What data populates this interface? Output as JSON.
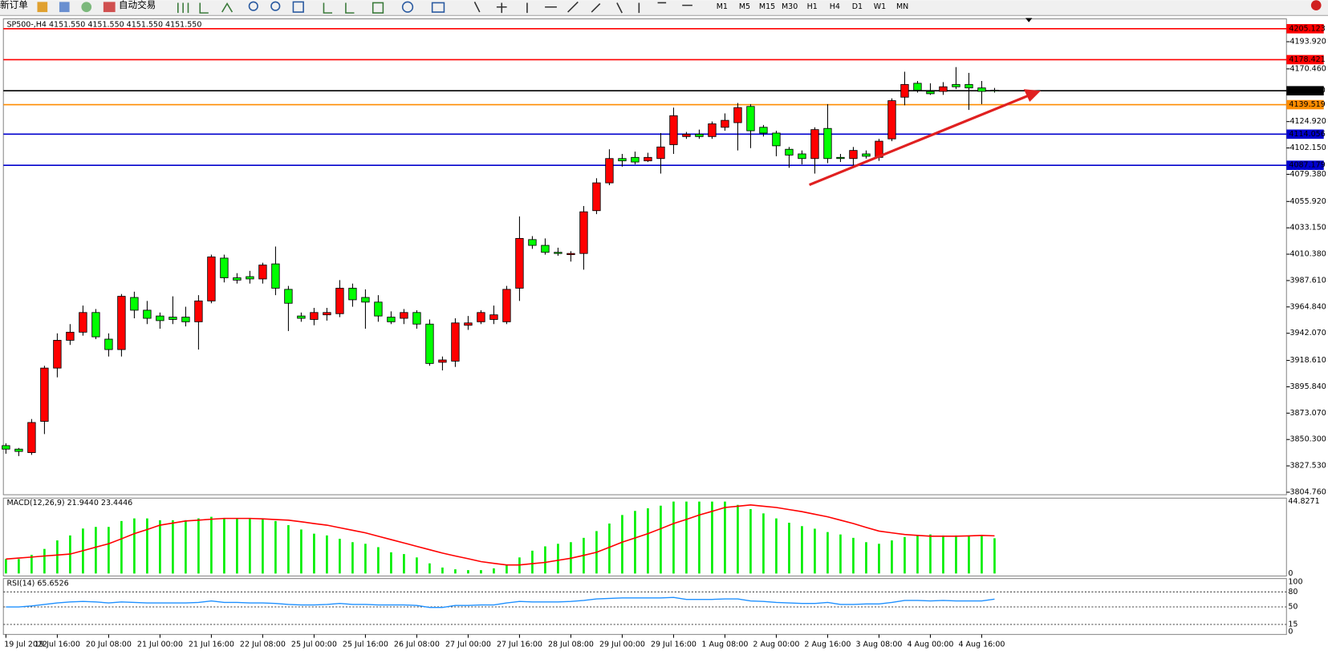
{
  "toolbar": {
    "new_order": "新订单",
    "auto_trading": "自动交易",
    "timeframes": [
      "M1",
      "M5",
      "M15",
      "M30",
      "H1",
      "H4",
      "D1",
      "W1",
      "MN"
    ]
  },
  "chart_data": [
    {
      "type": "candlestick",
      "title": "SP500-,H4  4151.550 4151.550 4151.550 4151.550",
      "bull_color": "#ff0000",
      "bear_color": "#00ff00",
      "categories": [
        "19 Jul 2022",
        null,
        null,
        null,
        "19 Jul 16:00",
        null,
        null,
        null,
        "20 Jul 08:00",
        null,
        null,
        null,
        "21 Jul 00:00",
        null,
        null,
        null,
        "21 Jul 16:00",
        null,
        null,
        null,
        "22 Jul 08:00",
        null,
        null,
        null,
        "25 Jul 00:00",
        null,
        null,
        null,
        "25 Jul 16:00",
        null,
        null,
        null,
        "26 Jul 08:00",
        null,
        null,
        null,
        "27 Jul 00:00",
        null,
        null,
        null,
        "27 Jul 16:00",
        null,
        null,
        null,
        "28 Jul 08:00",
        null,
        null,
        null,
        "29 Jul 00:00",
        null,
        null,
        null,
        "29 Jul 16:00",
        null,
        null,
        null,
        "1 Aug 08:00",
        null,
        null,
        null,
        "2 Aug 00:00",
        null,
        null,
        null,
        "2 Aug 16:00",
        null,
        null,
        null,
        "3 Aug 08:00",
        null,
        null,
        null,
        "4 Aug 00:00",
        null,
        null,
        null,
        "4 Aug 16:00",
        null
      ],
      "open": [
        3845,
        3842,
        3839,
        3866,
        3912,
        3936,
        3943,
        3960,
        3937,
        3928,
        3973,
        3962,
        3957,
        3956,
        3956,
        3952,
        3970,
        4007,
        3990,
        3991,
        3989,
        4002,
        3980,
        3957,
        3954,
        3958,
        3959,
        3981,
        3973,
        3969,
        3956,
        3955,
        3960,
        3950,
        3917,
        3918,
        3949,
        3952,
        3954,
        3952,
        3981,
        4023,
        4018,
        4012,
        4010,
        4011,
        4048,
        4072,
        4093,
        4094,
        4091,
        4093,
        4105,
        4112,
        4114,
        4112,
        4120,
        4124,
        4138,
        4120,
        4115,
        4101,
        4097,
        4093,
        4119,
        4094,
        4093,
        4097,
        4094,
        4110,
        4146,
        4158,
        4151,
        4151,
        4157,
        4157,
        4154,
        4152
      ],
      "high": [
        3847,
        3843,
        3868,
        3914,
        3942,
        3950,
        3966,
        3963,
        3942,
        3976,
        3978,
        3970,
        3960,
        3974,
        3965,
        3975,
        4010,
        4010,
        3994,
        3996,
        4003,
        4017,
        3983,
        3960,
        3964,
        3964,
        3988,
        3985,
        3980,
        3975,
        3961,
        3963,
        3962,
        3954,
        3922,
        3955,
        3957,
        3962,
        3966,
        3983,
        4043,
        4026,
        4024,
        4016,
        4013,
        4052,
        4076,
        4101,
        4097,
        4099,
        4098,
        4115,
        4137,
        4116,
        4118,
        4125,
        4132,
        4141,
        4140,
        4122,
        4117,
        4103,
        4100,
        4120,
        4140,
        4097,
        4103,
        4100,
        4110,
        4145,
        4168,
        4160,
        4158,
        4159,
        4172,
        4167,
        4160,
        4154
      ],
      "low": [
        3838,
        3836,
        3837,
        3855,
        3904,
        3932,
        3940,
        3937,
        3922,
        3922,
        3955,
        3950,
        3946,
        3950,
        3948,
        3928,
        3968,
        3986,
        3985,
        3985,
        3985,
        3975,
        3944,
        3952,
        3949,
        3953,
        3956,
        3965,
        3946,
        3952,
        3950,
        3950,
        3946,
        3914,
        3910,
        3913,
        3945,
        3950,
        3950,
        3950,
        3970,
        4015,
        4010,
        4009,
        4004,
        3997,
        4045,
        4070,
        4086,
        4088,
        4090,
        4080,
        4097,
        4110,
        4110,
        4110,
        4117,
        4100,
        4102,
        4112,
        4095,
        4085,
        4088,
        4080,
        4089,
        4090,
        4086,
        4093,
        4091,
        4108,
        4139,
        4150,
        4148,
        4148,
        4153,
        4135,
        4140,
        4150
      ],
      "close": [
        3842,
        3840,
        3865,
        3912,
        3936,
        3943,
        3960,
        3939,
        3928,
        3974,
        3962,
        3955,
        3953,
        3954,
        3952,
        3970,
        4008,
        3990,
        3988,
        3989,
        4001,
        3981,
        3968,
        3955,
        3960,
        3960,
        3981,
        3971,
        3969,
        3957,
        3952,
        3960,
        3950,
        3916,
        3919,
        3951,
        3951,
        3960,
        3958,
        3980,
        4024,
        4018,
        4012,
        4011,
        4011,
        4047,
        4072,
        4093,
        4091,
        4090,
        4094,
        4103,
        4130,
        4114,
        4112,
        4123,
        4126,
        4137,
        4117,
        4115,
        4104,
        4096,
        4093,
        4118,
        4093,
        4093,
        4100,
        4095,
        4108,
        4143,
        4157,
        4152,
        4149,
        4155,
        4155,
        4154,
        4151,
        4151.55
      ],
      "ylim": [
        3802.6,
        4210.0
      ],
      "yticks": [
        {
          "value": 4193.92,
          "label": "4193.920"
        },
        {
          "value": 4170.46,
          "label": "4170.460"
        },
        {
          "value": 4124.92,
          "label": "4124.920"
        },
        {
          "value": 4102.15,
          "label": "4102.150"
        },
        {
          "value": 4079.38,
          "label": "4079.380"
        },
        {
          "value": 4055.92,
          "label": "4055.920"
        },
        {
          "value": 4033.15,
          "label": "4033.150"
        },
        {
          "value": 4010.38,
          "label": "4010.380"
        },
        {
          "value": 3987.61,
          "label": "3987.610"
        },
        {
          "value": 3964.84,
          "label": "3964.840"
        },
        {
          "value": 3942.07,
          "label": "3942.070"
        },
        {
          "value": 3918.61,
          "label": "3918.610"
        },
        {
          "value": 3895.84,
          "label": "3895.840"
        },
        {
          "value": 3873.07,
          "label": "3873.070"
        },
        {
          "value": 3850.3,
          "label": "3850.300"
        },
        {
          "value": 3827.53,
          "label": "3827.530"
        },
        {
          "value": 3804.76,
          "label": "3804.760"
        }
      ],
      "levels": [
        {
          "value": 4205.123,
          "label": "4205.123",
          "color": "#ff0000"
        },
        {
          "value": 4178.421,
          "label": "4178.421",
          "color": "#ff0000"
        },
        {
          "value": 4151.55,
          "label": "4151.550",
          "color": "#000000"
        },
        {
          "value": 4139.519,
          "label": "4139.519",
          "color": "#ff8c00"
        },
        {
          "value": 4114.056,
          "label": "4114.056",
          "color": "#0000cd"
        },
        {
          "value": 4087.179,
          "label": "4087.179",
          "color": "#0000cd"
        }
      ]
    },
    {
      "type": "macd",
      "title": "MACD(12,26,9) 21.9440 23.4446",
      "ylim": [
        0,
        44.8271
      ],
      "yticks": [
        0,
        44.8271
      ],
      "series": [
        {
          "color": "#00ee00",
          "values": [
            9.0,
            9.0,
            11.6,
            15.3,
            20.6,
            23.7,
            28.0,
            29.0,
            29.0,
            32.7,
            34.3,
            34.3,
            33.2,
            33.2,
            33.2,
            34.3,
            35.3,
            34.3,
            34.3,
            34.3,
            34.3,
            32.7,
            30.1,
            27.4,
            24.8,
            23.7,
            21.6,
            19.5,
            18.5,
            16.4,
            13.2,
            12.1,
            10.0,
            6.3,
            3.7,
            2.6,
            2.1,
            2.1,
            3.2,
            5.3,
            10.0,
            14.2,
            16.9,
            18.5,
            19.5,
            22.2,
            26.4,
            31.1,
            36.4,
            39.0,
            40.6,
            42.2,
            44.8,
            44.8,
            44.8,
            44.8,
            44.8,
            42.7,
            40.1,
            37.4,
            34.3,
            31.6,
            29.5,
            27.9,
            25.8,
            24.3,
            22.2,
            19.5,
            18.5,
            20.6,
            22.7,
            23.7,
            24.3,
            23.7,
            23.7,
            23.7,
            23.7,
            21.944
          ]
        },
        {
          "color": "#ff0000",
          "values": [
            9.0,
            9.6,
            10.2,
            10.9,
            11.5,
            12.1,
            14.2,
            16.4,
            18.5,
            21.6,
            24.8,
            27.4,
            30.1,
            31.4,
            32.7,
            33.2,
            33.8,
            34.3,
            34.3,
            34.3,
            34.0,
            33.6,
            33.2,
            32.2,
            31.1,
            30.1,
            28.5,
            26.9,
            25.3,
            23.2,
            21.1,
            19.0,
            16.9,
            14.8,
            12.7,
            10.9,
            9.2,
            7.4,
            6.3,
            5.3,
            5.3,
            6.1,
            6.9,
            8.2,
            9.5,
            11.3,
            13.2,
            16.3,
            19.5,
            22.1,
            24.8,
            27.9,
            31.1,
            33.7,
            36.4,
            38.7,
            41.1,
            41.9,
            42.7,
            41.9,
            41.1,
            39.8,
            38.5,
            36.9,
            35.3,
            33.2,
            31.1,
            28.7,
            26.4,
            25.3,
            24.3,
            23.7,
            23.2,
            23.2,
            23.2,
            23.4,
            23.7,
            23.4446
          ]
        }
      ]
    },
    {
      "type": "rsi",
      "title": "RSI(14) 65.6526",
      "color": "#1e90ff",
      "ylim": [
        0,
        100
      ],
      "yticks": [
        100,
        80,
        50,
        15,
        0
      ],
      "levels": [
        80,
        50,
        15
      ],
      "values": [
        50,
        50,
        52,
        55,
        58,
        60,
        61,
        60,
        58,
        60,
        59,
        58,
        58,
        58,
        58,
        59,
        62,
        59,
        59,
        58,
        58,
        57,
        55,
        54,
        54,
        55,
        57,
        55,
        55,
        54,
        54,
        54,
        53,
        49,
        49,
        53,
        53,
        54,
        54,
        58,
        61,
        60,
        60,
        60,
        61,
        63,
        66,
        67,
        68,
        68,
        68,
        68,
        69,
        65,
        65,
        65,
        66,
        66,
        62,
        61,
        59,
        58,
        57,
        57,
        59,
        55,
        55,
        56,
        56,
        59,
        63,
        63,
        62,
        63,
        62,
        62,
        62,
        65.6526
      ]
    }
  ]
}
